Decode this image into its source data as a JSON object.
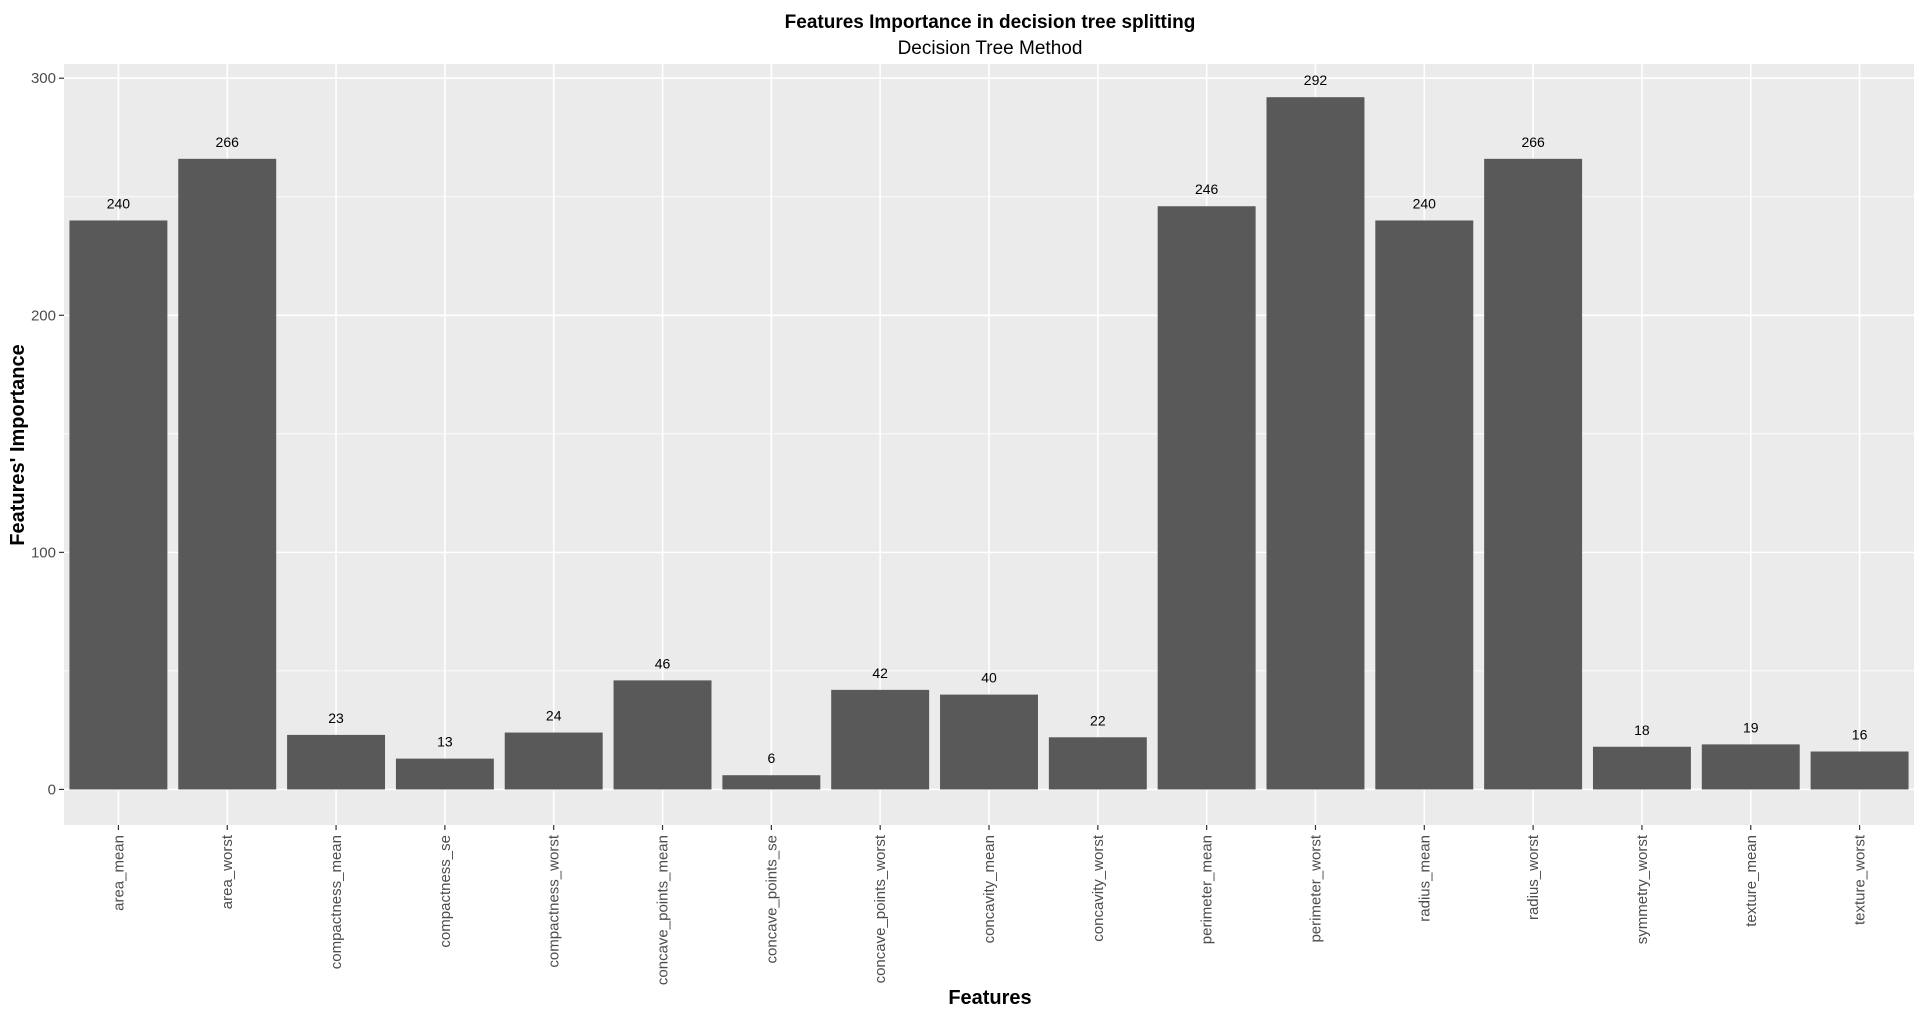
{
  "chart_data": {
    "type": "bar",
    "title": "Features Importance in decision tree splitting",
    "subtitle": "Decision Tree Method",
    "xlabel": "Features",
    "ylabel": "Features' Importance",
    "categories": [
      "area_mean",
      "area_worst",
      "compactness_mean",
      "compactness_se",
      "compactness_worst",
      "concave_points_mean",
      "concave_points_se",
      "concave_points_worst",
      "concavity_mean",
      "concavity_worst",
      "perimeter_mean",
      "perimeter_worst",
      "radius_mean",
      "radius_worst",
      "symmetry_worst",
      "texture_mean",
      "texture_worst"
    ],
    "values": [
      240,
      266,
      23,
      13,
      24,
      46,
      6,
      42,
      40,
      22,
      246,
      292,
      240,
      266,
      18,
      19,
      16
    ],
    "data_labels": [
      "240",
      "266",
      "23",
      "13",
      "24",
      "46",
      "6",
      "42",
      "40",
      "22",
      "246",
      "292",
      "240",
      "266",
      "18",
      "19",
      "16"
    ],
    "yticks": [
      0,
      100,
      200,
      300
    ],
    "ytick_labels": [
      "0",
      "100",
      "200",
      "300"
    ],
    "ylim": [
      -15,
      306
    ],
    "grid": true,
    "colors": {
      "bar": "#595959",
      "panel": "#ebebeb",
      "grid": "#ffffff",
      "tick_text": "#4d4d4d"
    }
  }
}
